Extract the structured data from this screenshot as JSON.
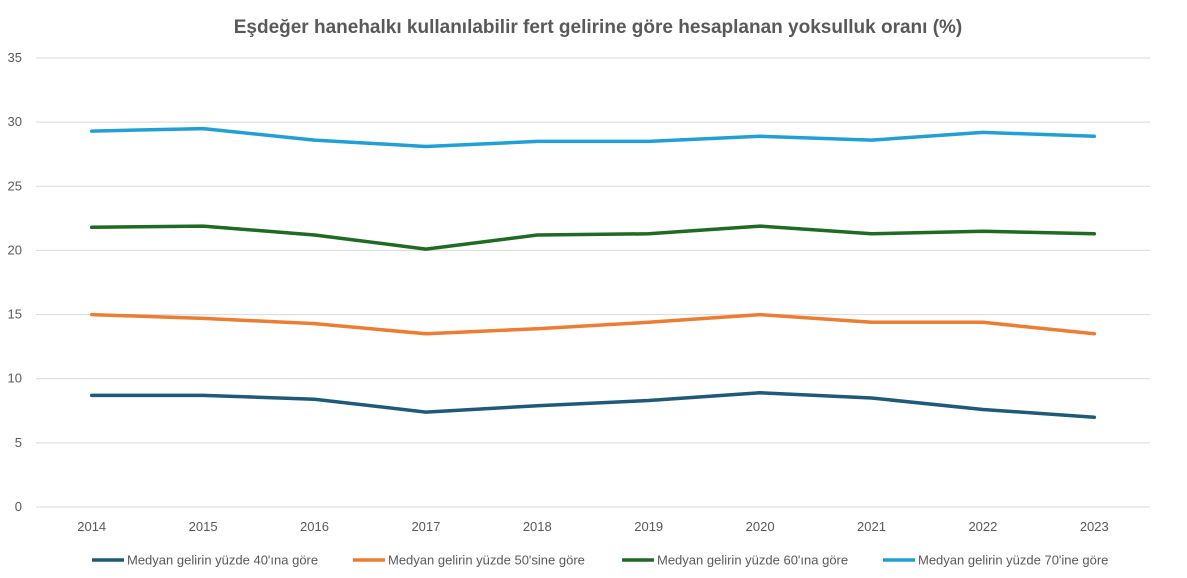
{
  "chart_data": {
    "type": "line",
    "title": "Eşdeğer hanehalkı kullanılabilir fert gelirine göre hesaplanan yoksulluk oranı (%)",
    "xlabel": "",
    "ylabel": "",
    "categories": [
      "2014",
      "2015",
      "2016",
      "2017",
      "2018",
      "2019",
      "2020",
      "2021",
      "2022",
      "2023"
    ],
    "ylim": [
      0,
      35
    ],
    "yticks": [
      "0",
      "5",
      "10",
      "15",
      "20",
      "25",
      "30",
      "35"
    ],
    "grid": true,
    "legend": "bottom",
    "series": [
      {
        "name": "Medyan gelirin yüzde 40'ına göre",
        "color": "#1f5a7a",
        "values": [
          8.7,
          8.7,
          8.4,
          7.4,
          7.9,
          8.3,
          8.9,
          8.5,
          7.6,
          7.0
        ]
      },
      {
        "name": "Medyan gelirin yüzde 50'sine göre",
        "color": "#ed7d31",
        "values": [
          15.0,
          14.7,
          14.3,
          13.5,
          13.9,
          14.4,
          15.0,
          14.4,
          14.4,
          13.5
        ]
      },
      {
        "name": "Medyan gelirin yüzde 60'ına göre",
        "color": "#1e6b24",
        "values": [
          21.8,
          21.9,
          21.2,
          20.1,
          21.2,
          21.3,
          21.9,
          21.3,
          21.5,
          21.3
        ]
      },
      {
        "name": "Medyan gelirin yüzde 70'ine göre",
        "color": "#21a0d8",
        "values": [
          29.3,
          29.5,
          28.6,
          28.1,
          28.5,
          28.5,
          28.9,
          28.6,
          29.2,
          28.9
        ]
      }
    ]
  }
}
